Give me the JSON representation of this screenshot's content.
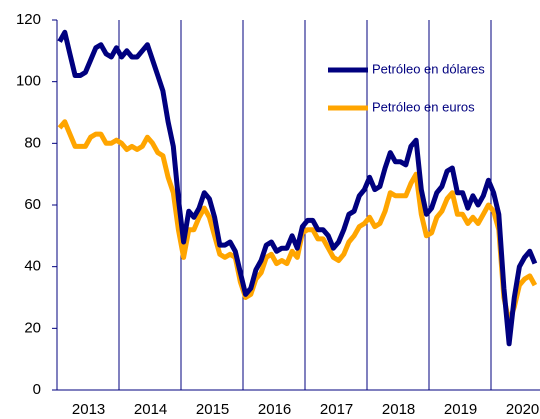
{
  "chart_data": {
    "type": "line",
    "categories": [
      null,
      null,
      null,
      null,
      null,
      null,
      "2013",
      null,
      null,
      null,
      null,
      null,
      null,
      null,
      null,
      null,
      null,
      null,
      "2014",
      null,
      null,
      null,
      null,
      null,
      null,
      null,
      null,
      null,
      null,
      null,
      "2015",
      null,
      null,
      null,
      null,
      null,
      null,
      null,
      null,
      null,
      null,
      null,
      "2016",
      null,
      null,
      null,
      null,
      null,
      null,
      null,
      null,
      null,
      null,
      null,
      "2017",
      null,
      null,
      null,
      null,
      null,
      null,
      null,
      null,
      null,
      null,
      null,
      "2018",
      null,
      null,
      null,
      null,
      null,
      null,
      null,
      null,
      null,
      null,
      null,
      "2019",
      null,
      null,
      null,
      null,
      null,
      null,
      null,
      null,
      null,
      null,
      null,
      "2020",
      null,
      null
    ],
    "series": [
      {
        "name": "Petróleo en dólares",
        "color": "#00007f",
        "values": [
          113,
          116,
          109,
          102,
          102,
          103,
          107,
          111,
          112,
          109,
          108,
          111,
          108,
          110,
          108,
          108,
          110,
          112,
          107,
          102,
          97,
          87,
          79,
          62,
          48,
          58,
          56,
          59,
          64,
          62,
          56,
          47,
          47,
          48,
          45,
          38,
          31,
          33,
          39,
          42,
          47,
          48,
          45,
          46,
          46,
          50,
          46,
          53,
          55,
          55,
          52,
          52,
          50,
          46,
          48,
          52,
          57,
          58,
          63,
          65,
          69,
          65,
          66,
          72,
          77,
          74,
          74,
          73,
          79,
          81,
          65,
          57,
          59,
          64,
          66,
          71,
          72,
          64,
          64,
          59,
          63,
          60,
          63,
          68,
          64,
          57,
          33,
          15,
          30,
          40,
          43,
          45,
          41
        ]
      },
      {
        "name": "Petróleo en euros",
        "color": "#ffa500",
        "values": [
          85,
          87,
          83,
          79,
          79,
          79,
          82,
          83,
          83,
          80,
          80,
          81,
          80,
          78,
          79,
          78,
          79,
          82,
          80,
          77,
          76,
          69,
          64,
          52,
          43,
          52,
          52,
          56,
          59,
          56,
          50,
          44,
          43,
          44,
          43,
          35,
          30,
          31,
          36,
          38,
          43,
          44,
          41,
          42,
          41,
          45,
          43,
          51,
          52,
          52,
          49,
          49,
          46,
          43,
          42,
          44,
          48,
          50,
          53,
          54,
          56,
          53,
          54,
          58,
          64,
          63,
          63,
          63,
          67,
          70,
          57,
          50,
          51,
          56,
          58,
          62,
          64,
          57,
          57,
          54,
          56,
          54,
          57,
          60,
          58,
          52,
          30,
          22,
          27,
          34,
          36,
          37,
          34
        ]
      }
    ],
    "ylim": [
      0,
      120
    ],
    "yticks": [
      0,
      20,
      40,
      60,
      80,
      100,
      120
    ]
  }
}
